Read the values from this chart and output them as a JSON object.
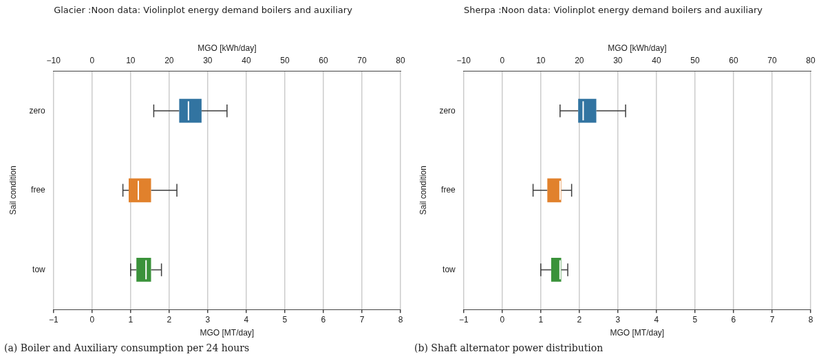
{
  "chart_data": [
    {
      "type": "box",
      "orientation": "horizontal",
      "title": "Glacier :Noon data: Violinplot energy demand boilers and auxiliary",
      "xlabel": "MGO [MT/day]",
      "x2label": "MGO [kWh/day]",
      "ylabel": "Sail condition",
      "categories": [
        "zero",
        "free",
        "tow"
      ],
      "colors": [
        "#3274a1",
        "#e1812c",
        "#3a923a"
      ],
      "boxes": [
        {
          "low": 1.6,
          "q1": 2.26,
          "median": 2.5,
          "q3": 2.84,
          "high": 3.5
        },
        {
          "low": 0.8,
          "q1": 0.95,
          "median": 1.2,
          "q3": 1.53,
          "high": 2.2
        },
        {
          "low": 1.0,
          "q1": 1.15,
          "median": 1.4,
          "q3": 1.53,
          "high": 1.8
        }
      ],
      "xlim": [
        -1,
        8
      ],
      "xticks": [
        {
          "value": -1,
          "label": "−1"
        },
        0,
        1,
        2,
        3,
        4,
        5,
        6,
        7,
        8
      ],
      "x2lim": [
        -10,
        80
      ],
      "x2ticks": [
        {
          "value": -10,
          "label": "−10"
        },
        0,
        10,
        20,
        30,
        40,
        50,
        60,
        70,
        80
      ],
      "grid": "x",
      "annotations": [
        "(a) Boiler and Auxiliary consumption per 24 hours"
      ]
    },
    {
      "type": "box",
      "orientation": "horizontal",
      "title": "Sherpa :Noon data: Violinplot energy demand boilers and auxiliary",
      "xlabel": "MGO [MT/day]",
      "x2label": "MGO [kWh/day]",
      "ylabel": "Sail condition",
      "categories": [
        "zero",
        "free",
        "tow"
      ],
      "colors": [
        "#3274a1",
        "#e1812c",
        "#3a923a"
      ],
      "boxes": [
        {
          "low": 1.5,
          "q1": 1.97,
          "median": 2.1,
          "q3": 2.44,
          "high": 3.2
        },
        {
          "low": 0.8,
          "q1": 1.17,
          "median": 1.5,
          "q3": 1.53,
          "high": 1.8
        },
        {
          "low": 1.0,
          "q1": 1.27,
          "median": 1.5,
          "q3": 1.53,
          "high": 1.7
        }
      ],
      "xlim": [
        -1,
        8
      ],
      "xticks": [
        {
          "value": -1,
          "label": "−1"
        },
        0,
        1,
        2,
        3,
        4,
        5,
        6,
        7,
        8
      ],
      "x2lim": [
        -10,
        80
      ],
      "x2ticks": [
        {
          "value": -10,
          "label": "−10"
        },
        0,
        10,
        20,
        30,
        40,
        50,
        60,
        70,
        80
      ],
      "grid": "x",
      "annotations": [
        "(b) Shaft alternator power distribution"
      ]
    }
  ]
}
